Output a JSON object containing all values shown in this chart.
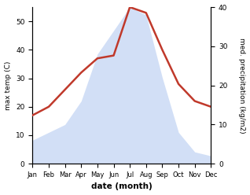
{
  "months": [
    "Jan",
    "Feb",
    "Mar",
    "Apr",
    "May",
    "Jun",
    "Jul",
    "Aug",
    "Sep",
    "Oct",
    "Nov",
    "Dec"
  ],
  "temperature": [
    17,
    20,
    26,
    32,
    37,
    38,
    55,
    53,
    40,
    28,
    22,
    20
  ],
  "precipitation": [
    6,
    8,
    10,
    16,
    28,
    34,
    40,
    38,
    22,
    8,
    3,
    2
  ],
  "temp_color": "#c0392b",
  "precip_color": "#aec6f0",
  "precip_fill_alpha": 0.55,
  "ylabel_left": "max temp (C)",
  "ylabel_right": "med. precipitation (kg/m2)",
  "xlabel": "date (month)",
  "ylim_left": [
    0,
    55
  ],
  "ylim_right": [
    0,
    40
  ],
  "yticks_left": [
    0,
    10,
    20,
    30,
    40,
    50
  ],
  "yticks_right": [
    0,
    10,
    20,
    30,
    40
  ],
  "background_color": "#ffffff",
  "line_width": 1.8
}
